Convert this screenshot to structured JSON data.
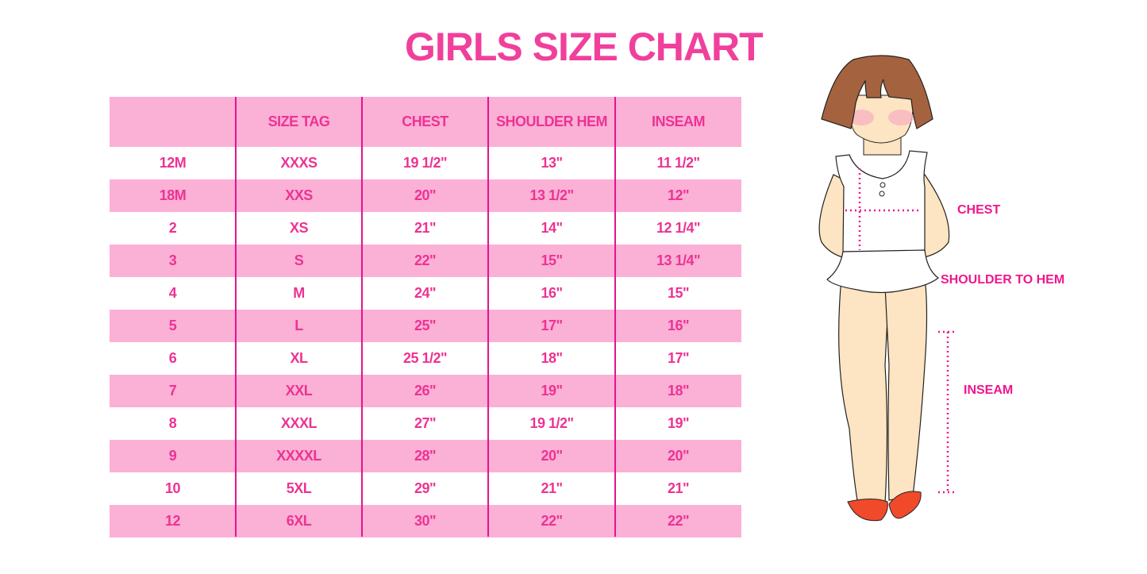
{
  "title": "GIRLS SIZE CHART",
  "colors": {
    "accent": "#ec3393",
    "row_pink": "#fbb0d6",
    "divider": "#e3148c"
  },
  "table": {
    "headers": [
      "",
      "SIZE TAG",
      "CHEST",
      "SHOULDER HEM",
      "INSEAM"
    ],
    "rows": [
      [
        "12M",
        "XXXS",
        "19 1/2\"",
        "13\"",
        "11 1/2\""
      ],
      [
        "18M",
        "XXS",
        "20\"",
        "13 1/2\"",
        "12\""
      ],
      [
        "2",
        "XS",
        "21\"",
        "14\"",
        "12 1/4\""
      ],
      [
        "3",
        "S",
        "22\"",
        "15\"",
        "13 1/4\""
      ],
      [
        "4",
        "M",
        "24\"",
        "16\"",
        "15\""
      ],
      [
        "5",
        "L",
        "25\"",
        "17\"",
        "16\""
      ],
      [
        "6",
        "XL",
        "25 1/2\"",
        "18\"",
        "17\""
      ],
      [
        "7",
        "XXL",
        "26\"",
        "19\"",
        "18\""
      ],
      [
        "8",
        "XXXL",
        "27\"",
        "19 1/2\"",
        "19\""
      ],
      [
        "9",
        "XXXXL",
        "28\"",
        "20\"",
        "20\""
      ],
      [
        "10",
        "5XL",
        "29\"",
        "21\"",
        "21\""
      ],
      [
        "12",
        "6XL",
        "30\"",
        "22\"",
        "22\""
      ]
    ]
  },
  "illustration": {
    "labels": {
      "chest": "CHEST",
      "shoulder_to_hem": "SHOULDER TO HEM",
      "inseam": "INSEAM"
    }
  }
}
